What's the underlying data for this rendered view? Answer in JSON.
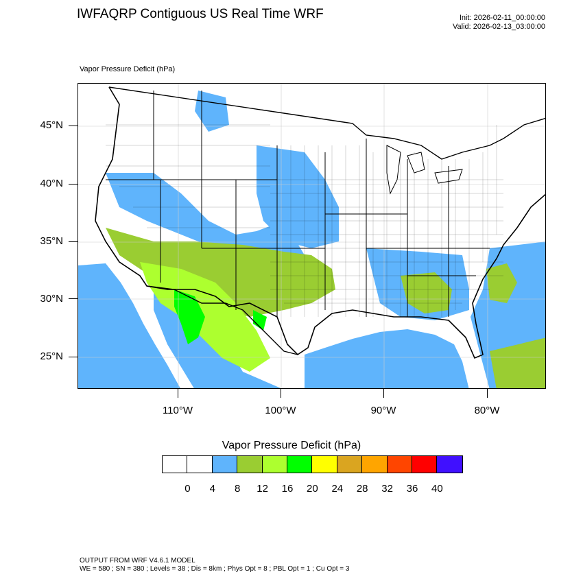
{
  "header": {
    "title": "IWFAQRP Contiguous US Real Time WRF",
    "init": "Init: 2026-02-11_00:00:00",
    "valid": "Valid: 2026-02-13_03:00:00"
  },
  "field_label": "Vapor Pressure Deficit   (hPa)",
  "map": {
    "lat_labels": [
      "45°N",
      "40°N",
      "35°N",
      "30°N",
      "25°N"
    ],
    "lon_labels": [
      "110°W",
      "100°W",
      "90°W",
      "80°W"
    ],
    "colors": {
      "ocean_light_blue": "#5fb4fc",
      "olive": "#9acd32",
      "yellow_green": "#adff2f",
      "green": "#00ff00"
    }
  },
  "colorbar": {
    "title": "Vapor Pressure Deficit  (hPa)",
    "labels": [
      "0",
      "4",
      "8",
      "12",
      "16",
      "20",
      "24",
      "28",
      "32",
      "36",
      "40"
    ],
    "colors": [
      "#ffffff",
      "#ffffff",
      "#5fb4fc",
      "#9acd32",
      "#adff2f",
      "#00ff00",
      "#ffff00",
      "#daa520",
      "#ffa500",
      "#ff4500",
      "#ff0000",
      "#4010ff"
    ]
  },
  "footer": {
    "line1": "OUTPUT FROM WRF V4.6.1 MODEL",
    "line2": "WE = 580 ; SN = 380 ; Levels = 38 ; Dis = 8km ; Phys Opt = 8 ; PBL Opt = 1 ; Cu Opt = 3"
  }
}
